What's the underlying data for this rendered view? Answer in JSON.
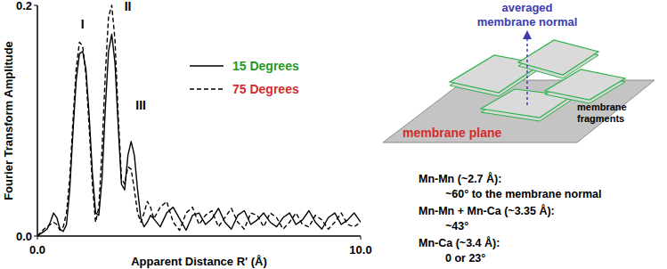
{
  "chart_data": {
    "type": "line",
    "x_label": "Apparent Distance R' (Å)",
    "y_label": "Fourier Transform Amplitude",
    "x": [
      0,
      0.1,
      0.2,
      0.3,
      0.4,
      0.5,
      0.6,
      0.7,
      0.8,
      0.9,
      1,
      1.1,
      1.2,
      1.3,
      1.4,
      1.5,
      1.6,
      1.7,
      1.8,
      1.9,
      2,
      2.1,
      2.2,
      2.3,
      2.4,
      2.5,
      2.6,
      2.7,
      2.8,
      2.9,
      3,
      3.1,
      3.2,
      3.3,
      3.4,
      3.5,
      3.6,
      3.8,
      4,
      4.2,
      4.4,
      4.6,
      4.8,
      5,
      5.2,
      5.4,
      5.6,
      5.8,
      6,
      6.2,
      6.4,
      6.6,
      6.8,
      7,
      7.2,
      7.4,
      7.6,
      7.8,
      8,
      8.2,
      8.4,
      8.6,
      8.8,
      9,
      9.2,
      9.4,
      9.6,
      9.8,
      10
    ],
    "series": [
      {
        "name": "15 Degrees",
        "color": "#000000",
        "line_style": "solid",
        "values": [
          0,
          0.002,
          0.004,
          0.006,
          0.012,
          0.02,
          0.016,
          0.006,
          0.004,
          0.01,
          0.04,
          0.09,
          0.135,
          0.158,
          0.16,
          0.145,
          0.105,
          0.055,
          0.02,
          0.018,
          0.05,
          0.11,
          0.16,
          0.175,
          0.15,
          0.095,
          0.045,
          0.04,
          0.07,
          0.082,
          0.07,
          0.04,
          0.015,
          0.008,
          0.012,
          0.018,
          0.015,
          0.008,
          0.02,
          0.025,
          0.015,
          0.005,
          0.018,
          0.02,
          0.01,
          0.015,
          0.024,
          0.012,
          0.006,
          0.018,
          0.022,
          0.01,
          0.014,
          0.02,
          0.012,
          0.008,
          0.016,
          0.02,
          0.01,
          0.014,
          0.022,
          0.012,
          0.006,
          0.016,
          0.02,
          0.01,
          0.014,
          0.02,
          0.012
        ]
      },
      {
        "name": "75 Degrees",
        "color": "#000000",
        "line_style": "dashed",
        "values": [
          0,
          0.003,
          0.006,
          0.008,
          0.01,
          0.012,
          0.01,
          0.005,
          0.008,
          0.02,
          0.05,
          0.1,
          0.145,
          0.168,
          0.165,
          0.14,
          0.095,
          0.045,
          0.012,
          0.025,
          0.075,
          0.14,
          0.19,
          0.2,
          0.17,
          0.105,
          0.05,
          0.045,
          0.06,
          0.058,
          0.04,
          0.02,
          0.012,
          0.02,
          0.03,
          0.025,
          0.015,
          0.025,
          0.03,
          0.012,
          0.005,
          0.02,
          0.025,
          0.01,
          0.018,
          0.022,
          0.008,
          0.016,
          0.024,
          0.012,
          0.006,
          0.02,
          0.018,
          0.008,
          0.02,
          0.016,
          0.006,
          0.012,
          0.02,
          0.01,
          0.008,
          0.018,
          0.014,
          0.006,
          0.012,
          0.02,
          0.01,
          0.008,
          0.012
        ]
      }
    ],
    "xlim": [
      0,
      10
    ],
    "ylim": [
      0,
      0.2
    ],
    "xticks": [
      {
        "value": 0,
        "label": "0.0"
      },
      {
        "value": 10,
        "label": "10.0"
      }
    ],
    "yticks": [
      {
        "value": 0,
        "label": "0.0"
      },
      0.2
    ],
    "annotations": [
      {
        "text": "I",
        "x": 1.4,
        "y": 0.18
      },
      {
        "text": "II",
        "x": 2.8,
        "y": 0.195
      },
      {
        "text": "III",
        "x": 3.2,
        "y": 0.11
      }
    ],
    "grid": false,
    "legend": "top-right"
  },
  "diagram": {
    "normal_label": [
      "averaged",
      "membrane normal"
    ],
    "fragments_label": [
      "membrane",
      "fragments"
    ],
    "plane_label": "membrane plane",
    "notes": [
      {
        "heading": "Mn-Mn (~2.7 Å):",
        "detail": "~60° to the membrane normal"
      },
      {
        "heading": "Mn-Mn + Mn-Ca (~3.35 Å):",
        "detail": "~43°"
      },
      {
        "heading": "Mn-Ca (~3.4 Å):",
        "detail": "0 or 23°"
      }
    ]
  }
}
